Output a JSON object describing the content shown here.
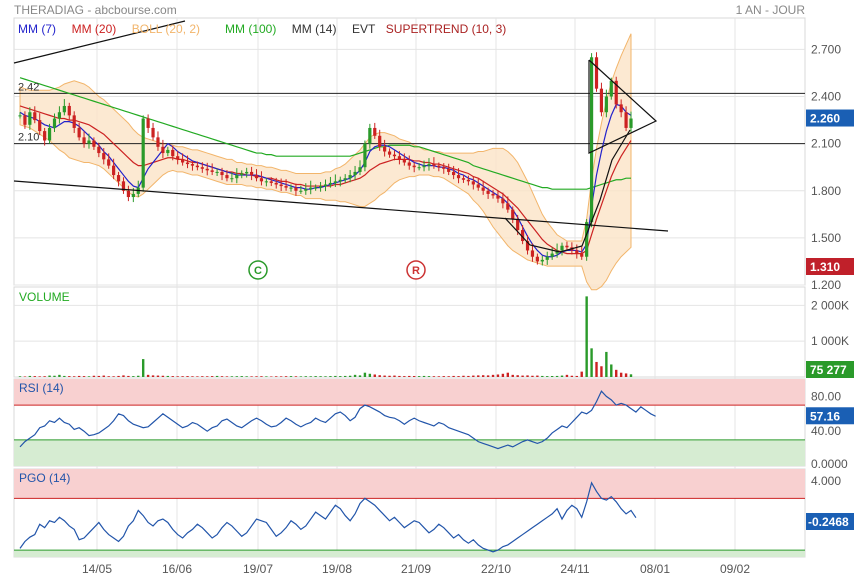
{
  "header": {
    "title": "THERADIAG - abcbourse.com",
    "period": "1 AN - JOUR"
  },
  "legend": [
    {
      "label": "MM (7)",
      "color": "#2222cc"
    },
    {
      "label": "MM (20)",
      "color": "#cc2222"
    },
    {
      "label": "BOLL (20, 2)",
      "color": "#f2b56b"
    },
    {
      "label": "MM (100)",
      "color": "#22aa22"
    },
    {
      "label": "MM (14)",
      "color": "#333333"
    },
    {
      "label": "EVT",
      "color": "#333333"
    },
    {
      "label": "SUPERTREND (10, 3)",
      "color": "#aa2222"
    }
  ],
  "panel_titles": {
    "volume": "VOLUME",
    "rsi": "RSI (14)",
    "pgo": "PGO (14)"
  },
  "markers": [
    {
      "label": "C",
      "color": "#2a9a2a"
    },
    {
      "label": "R",
      "color": "#cc3333"
    }
  ],
  "level_labels": [
    "2.42",
    "2.10"
  ],
  "badges": {
    "last_price": "2.260",
    "supertrend": "1.310",
    "volume": "75 277",
    "rsi": "57.16",
    "pgo": "-0.2468"
  },
  "chart_data": {
    "type": "candlestick",
    "x_ticks": [
      "14/05",
      "16/06",
      "19/07",
      "19/08",
      "21/09",
      "22/10",
      "24/11",
      "08/01",
      "09/02"
    ],
    "price": {
      "ylim": [
        1.2,
        2.9
      ],
      "y_ticks": [
        "1.200",
        "1.500",
        "1.800",
        "2.100",
        "2.400",
        "2.700"
      ],
      "close": [
        2.28,
        2.22,
        2.3,
        2.25,
        2.18,
        2.12,
        2.2,
        2.26,
        2.3,
        2.34,
        2.28,
        2.2,
        2.14,
        2.1,
        2.12,
        2.08,
        2.04,
        2.0,
        1.96,
        1.9,
        1.86,
        1.8,
        1.76,
        1.78,
        1.82,
        2.26,
        2.2,
        2.14,
        2.08,
        2.04,
        2.06,
        2.02,
        2.0,
        1.98,
        1.97,
        1.96,
        1.95,
        1.94,
        1.93,
        1.92,
        1.92,
        1.9,
        1.88,
        1.88,
        1.9,
        1.91,
        1.92,
        1.9,
        1.88,
        1.86,
        1.86,
        1.85,
        1.84,
        1.83,
        1.82,
        1.82,
        1.8,
        1.8,
        1.81,
        1.82,
        1.82,
        1.83,
        1.84,
        1.85,
        1.86,
        1.87,
        1.88,
        1.9,
        1.92,
        1.95,
        2.1,
        2.2,
        2.15,
        2.08,
        2.05,
        2.03,
        2.02,
        2.0,
        1.98,
        1.96,
        1.95,
        1.95,
        1.96,
        1.97,
        1.96,
        1.95,
        1.94,
        1.92,
        1.9,
        1.88,
        1.87,
        1.86,
        1.84,
        1.82,
        1.8,
        1.78,
        1.77,
        1.75,
        1.72,
        1.68,
        1.62,
        1.55,
        1.48,
        1.42,
        1.38,
        1.35,
        1.36,
        1.38,
        1.4,
        1.42,
        1.45,
        1.44,
        1.42,
        1.4,
        1.38,
        1.6,
        2.65,
        2.45,
        2.3,
        2.4,
        2.5,
        2.35,
        2.3,
        2.2,
        2.26
      ],
      "ma7": [
        2.3,
        2.28,
        2.27,
        2.26,
        2.24,
        2.22,
        2.21,
        2.2,
        2.22,
        2.24,
        2.24,
        2.23,
        2.21,
        2.18,
        2.15,
        2.12,
        2.09,
        2.05,
        2.02,
        1.98,
        1.94,
        1.9,
        1.86,
        1.83,
        1.82,
        1.88,
        1.94,
        1.98,
        2.02,
        2.06,
        2.1,
        2.08,
        2.05,
        2.03,
        2.01,
        1.99,
        1.98,
        1.97,
        1.96,
        1.95,
        1.94,
        1.93,
        1.92,
        1.91,
        1.9,
        1.9,
        1.9,
        1.9,
        1.9,
        1.89,
        1.88,
        1.87,
        1.86,
        1.85,
        1.84,
        1.83,
        1.82,
        1.82,
        1.81,
        1.81,
        1.82,
        1.82,
        1.83,
        1.84,
        1.85,
        1.86,
        1.87,
        1.88,
        1.9,
        1.93,
        1.98,
        2.05,
        2.08,
        2.09,
        2.09,
        2.08,
        2.06,
        2.04,
        2.02,
        2.0,
        1.98,
        1.97,
        1.96,
        1.96,
        1.96,
        1.95,
        1.95,
        1.94,
        1.93,
        1.91,
        1.9,
        1.88,
        1.87,
        1.85,
        1.83,
        1.81,
        1.79,
        1.77,
        1.75,
        1.72,
        1.68,
        1.63,
        1.57,
        1.51,
        1.46,
        1.42,
        1.39,
        1.38,
        1.38,
        1.39,
        1.41,
        1.42,
        1.42,
        1.42,
        1.41,
        1.46,
        1.7,
        1.9,
        2.05,
        2.18,
        2.28,
        2.35,
        2.34,
        2.3,
        2.28
      ],
      "ma20": [
        2.34,
        2.33,
        2.32,
        2.31,
        2.3,
        2.29,
        2.28,
        2.27,
        2.26,
        2.26,
        2.25,
        2.25,
        2.24,
        2.23,
        2.22,
        2.2,
        2.18,
        2.16,
        2.13,
        2.1,
        2.07,
        2.04,
        2.01,
        1.98,
        1.96,
        1.96,
        1.97,
        1.98,
        1.99,
        2.0,
        2.01,
        2.01,
        2.0,
        2.0,
        1.99,
        1.98,
        1.98,
        1.97,
        1.96,
        1.95,
        1.94,
        1.93,
        1.92,
        1.92,
        1.91,
        1.91,
        1.9,
        1.9,
        1.89,
        1.89,
        1.88,
        1.88,
        1.87,
        1.86,
        1.86,
        1.85,
        1.84,
        1.84,
        1.83,
        1.83,
        1.83,
        1.83,
        1.83,
        1.83,
        1.84,
        1.84,
        1.85,
        1.86,
        1.87,
        1.88,
        1.9,
        1.93,
        1.95,
        1.97,
        1.98,
        1.99,
        2.0,
        2.0,
        2.0,
        2.0,
        1.99,
        1.99,
        1.98,
        1.98,
        1.97,
        1.97,
        1.96,
        1.95,
        1.94,
        1.93,
        1.92,
        1.91,
        1.89,
        1.88,
        1.86,
        1.84,
        1.82,
        1.8,
        1.78,
        1.75,
        1.72,
        1.69,
        1.65,
        1.61,
        1.57,
        1.53,
        1.49,
        1.46,
        1.44,
        1.42,
        1.41,
        1.4,
        1.4,
        1.4,
        1.4,
        1.42,
        1.52,
        1.62,
        1.71,
        1.8,
        1.89,
        1.96,
        2.02,
        2.07,
        2.12
      ],
      "ma100": [
        2.52,
        2.51,
        2.5,
        2.49,
        2.48,
        2.47,
        2.46,
        2.45,
        2.44,
        2.43,
        2.42,
        2.41,
        2.4,
        2.39,
        2.38,
        2.37,
        2.36,
        2.35,
        2.34,
        2.33,
        2.32,
        2.31,
        2.3,
        2.29,
        2.28,
        2.27,
        2.26,
        2.25,
        2.24,
        2.23,
        2.22,
        2.21,
        2.2,
        2.19,
        2.18,
        2.17,
        2.16,
        2.15,
        2.14,
        2.13,
        2.12,
        2.11,
        2.1,
        2.09,
        2.08,
        2.07,
        2.06,
        2.05,
        2.04,
        2.04,
        2.03,
        2.03,
        2.02,
        2.02,
        2.02,
        2.02,
        2.02,
        2.02,
        2.02,
        2.02,
        2.02,
        2.02,
        2.02,
        2.02,
        2.02,
        2.02,
        2.02,
        2.02,
        2.03,
        2.04,
        2.05,
        2.06,
        2.07,
        2.08,
        2.08,
        2.09,
        2.09,
        2.09,
        2.09,
        2.09,
        2.08,
        2.08,
        2.07,
        2.06,
        2.05,
        2.04,
        2.03,
        2.02,
        2.01,
        2.0,
        1.99,
        1.98,
        1.96,
        1.95,
        1.94,
        1.93,
        1.92,
        1.91,
        1.9,
        1.89,
        1.88,
        1.87,
        1.86,
        1.85,
        1.84,
        1.83,
        1.82,
        1.82,
        1.81,
        1.81,
        1.81,
        1.81,
        1.81,
        1.81,
        1.81,
        1.81,
        1.82,
        1.83,
        1.84,
        1.85,
        1.86,
        1.87,
        1.87,
        1.88,
        1.88
      ],
      "boll_width": [
        0.12,
        0.12,
        0.12,
        0.13,
        0.14,
        0.15,
        0.16,
        0.18,
        0.2,
        0.22,
        0.24,
        0.25,
        0.25,
        0.25,
        0.24,
        0.23,
        0.22,
        0.22,
        0.22,
        0.22,
        0.22,
        0.22,
        0.22,
        0.21,
        0.2,
        0.18,
        0.16,
        0.14,
        0.12,
        0.1,
        0.09,
        0.08,
        0.08,
        0.08,
        0.08,
        0.08,
        0.08,
        0.08,
        0.08,
        0.08,
        0.08,
        0.08,
        0.08,
        0.08,
        0.07,
        0.07,
        0.07,
        0.07,
        0.07,
        0.07,
        0.07,
        0.07,
        0.07,
        0.07,
        0.07,
        0.07,
        0.07,
        0.07,
        0.08,
        0.08,
        0.08,
        0.08,
        0.09,
        0.09,
        0.1,
        0.11,
        0.12,
        0.14,
        0.16,
        0.18,
        0.2,
        0.21,
        0.21,
        0.2,
        0.19,
        0.17,
        0.15,
        0.13,
        0.12,
        0.11,
        0.1,
        0.09,
        0.08,
        0.08,
        0.08,
        0.08,
        0.08,
        0.09,
        0.1,
        0.11,
        0.12,
        0.13,
        0.15,
        0.17,
        0.19,
        0.22,
        0.25,
        0.27,
        0.29,
        0.3,
        0.3,
        0.29,
        0.27,
        0.25,
        0.22,
        0.19,
        0.16,
        0.14,
        0.12,
        0.1,
        0.09,
        0.08,
        0.08,
        0.08,
        0.08,
        0.2,
        0.35,
        0.45,
        0.52,
        0.57,
        0.6,
        0.62,
        0.64,
        0.66,
        0.68
      ]
    },
    "levels": [
      2.42,
      2.1
    ],
    "volume": {
      "y_ticks": [
        "1 000K",
        "2 000K"
      ],
      "ylim": [
        0,
        2400000
      ],
      "values": [
        20000,
        15000,
        30000,
        25000,
        18000,
        22000,
        40000,
        35000,
        60000,
        30000,
        25000,
        20000,
        30000,
        25000,
        20000,
        35000,
        30000,
        40000,
        22000,
        20000,
        30000,
        45000,
        30000,
        25000,
        35000,
        500000,
        60000,
        45000,
        40000,
        35000,
        30000,
        25000,
        20000,
        22000,
        25000,
        20000,
        18000,
        22000,
        20000,
        25000,
        30000,
        22000,
        18000,
        20000,
        22000,
        25000,
        20000,
        18000,
        20000,
        22000,
        18000,
        15000,
        20000,
        18000,
        22000,
        25000,
        20000,
        18000,
        22000,
        20000,
        25000,
        22000,
        20000,
        25000,
        30000,
        25000,
        30000,
        35000,
        60000,
        45000,
        120000,
        90000,
        70000,
        50000,
        40000,
        35000,
        40000,
        30000,
        25000,
        30000,
        28000,
        25000,
        30000,
        25000,
        22000,
        20000,
        25000,
        22000,
        30000,
        25000,
        35000,
        30000,
        40000,
        45000,
        50000,
        45000,
        60000,
        70000,
        90000,
        120000,
        60000,
        50000,
        40000,
        45000,
        35000,
        40000,
        30000,
        25000,
        28000,
        30000,
        40000,
        60000,
        35000,
        30000,
        150000,
        2250000,
        800000,
        420000,
        300000,
        700000,
        350000,
        200000,
        120000,
        100000,
        75277
      ]
    },
    "rsi": {
      "ylim": [
        0,
        100
      ],
      "y_ticks": [
        "0.0000",
        "40.00",
        "80.00"
      ],
      "bands": [
        30,
        70
      ],
      "values": [
        22,
        28,
        32,
        36,
        44,
        46,
        52,
        50,
        55,
        50,
        48,
        42,
        44,
        40,
        35,
        36,
        38,
        42,
        46,
        52,
        60,
        58,
        52,
        48,
        46,
        44,
        45,
        50,
        55,
        60,
        56,
        52,
        48,
        44,
        46,
        50,
        48,
        44,
        40,
        44,
        46,
        52,
        54,
        50,
        46,
        44,
        48,
        52,
        55,
        52,
        48,
        45,
        46,
        50,
        55,
        52,
        48,
        45,
        48,
        50,
        55,
        52,
        50,
        55,
        60,
        62,
        58,
        52,
        56,
        66,
        70,
        68,
        65,
        62,
        58,
        56,
        55,
        52,
        48,
        52,
        55,
        52,
        50,
        48,
        46,
        50,
        48,
        44,
        42,
        40,
        38,
        36,
        32,
        28,
        26,
        24,
        22,
        20,
        22,
        24,
        22,
        25,
        28,
        30,
        28,
        26,
        28,
        32,
        38,
        42,
        46,
        44,
        50,
        56,
        62,
        60,
        64,
        74,
        86,
        80,
        76,
        70,
        72,
        70,
        66,
        62,
        68,
        64,
        60,
        57.16
      ]
    },
    "pgo": {
      "ylim": [
        -4.8,
        5.4
      ],
      "y_ticks": [
        "4.000"
      ],
      "bands": [
        -4.0,
        2.0
      ],
      "values": [
        -3.8,
        -3.0,
        -2.5,
        -2.2,
        -1.0,
        -1.4,
        -0.6,
        -0.8,
        -0.2,
        -0.6,
        -1.2,
        -1.6,
        -2.8,
        -2.6,
        -2.0,
        -1.4,
        -0.8,
        -1.6,
        -2.2,
        -2.6,
        -3.0,
        -2.4,
        -1.2,
        -0.6,
        0.6,
        0.0,
        -0.8,
        -1.2,
        -0.6,
        -0.4,
        -0.8,
        -1.6,
        -2.2,
        -2.6,
        -2.0,
        -1.6,
        -1.0,
        -1.4,
        -2.0,
        -2.6,
        -2.2,
        -1.4,
        -0.8,
        -1.2,
        -1.8,
        -2.4,
        -2.0,
        -1.2,
        -0.4,
        -0.6,
        -0.8,
        -1.6,
        -2.4,
        -2.0,
        -1.4,
        -0.6,
        -1.0,
        -1.6,
        -1.2,
        -0.4,
        0.4,
        0.0,
        -0.4,
        0.4,
        1.2,
        0.8,
        0.0,
        -0.6,
        0.2,
        1.4,
        2.0,
        1.6,
        1.2,
        0.6,
        0.0,
        -0.6,
        -0.2,
        -0.8,
        -1.4,
        -1.0,
        -0.6,
        -0.8,
        -1.4,
        -2.0,
        -1.6,
        -1.0,
        -1.4,
        -2.0,
        -2.6,
        -2.2,
        -2.8,
        -3.2,
        -2.8,
        -3.4,
        -3.8,
        -4.0,
        -4.2,
        -4.0,
        -3.6,
        -3.4,
        -3.0,
        -2.6,
        -2.2,
        -1.8,
        -1.4,
        -1.0,
        -0.6,
        -0.2,
        0.2,
        0.8,
        -0.4,
        0.6,
        1.2,
        0.8,
        -0.2,
        1.6,
        3.8,
        2.8,
        2.0,
        1.8,
        2.2,
        1.6,
        0.8,
        0.2,
        0.6,
        -0.2468
      ]
    }
  }
}
